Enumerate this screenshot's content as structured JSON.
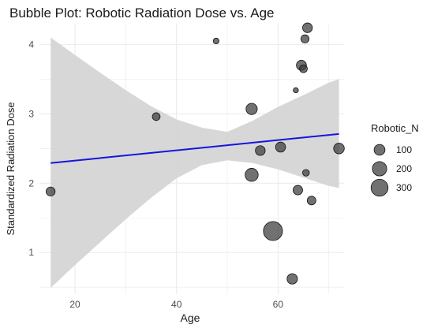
{
  "chart_data": {
    "type": "scatter",
    "subtype": "bubble",
    "title": "Bubble Plot: Robotic Radiation Dose vs. Age",
    "xlabel": "Age",
    "ylabel": "Standardized Radiation Dose",
    "xlim": [
      13,
      73
    ],
    "ylim": [
      0.4,
      4.3
    ],
    "x_ticks": [
      20,
      40,
      60
    ],
    "y_ticks": [
      1,
      2,
      3,
      4
    ],
    "x_tick_labels": [
      "20",
      "40",
      "60"
    ],
    "y_tick_labels": [
      "1",
      "2",
      "3",
      "4"
    ],
    "grid": true,
    "size_legend": {
      "title": "Robotic_N",
      "position": "right",
      "entries": [
        {
          "label": "100",
          "value": 100
        },
        {
          "label": "200",
          "value": 200
        },
        {
          "label": "300",
          "value": 300
        }
      ]
    },
    "points": [
      {
        "x": 15.2,
        "y": 1.88,
        "size": 60
      },
      {
        "x": 36.0,
        "y": 2.96,
        "size": 40
      },
      {
        "x": 47.8,
        "y": 4.05,
        "size": 15
      },
      {
        "x": 54.8,
        "y": 3.07,
        "size": 110
      },
      {
        "x": 54.8,
        "y": 2.12,
        "size": 160
      },
      {
        "x": 56.5,
        "y": 2.47,
        "size": 75
      },
      {
        "x": 59.0,
        "y": 1.31,
        "size": 390
      },
      {
        "x": 60.5,
        "y": 2.52,
        "size": 80
      },
      {
        "x": 62.8,
        "y": 0.62,
        "size": 90
      },
      {
        "x": 63.5,
        "y": 3.34,
        "size": 10
      },
      {
        "x": 63.9,
        "y": 1.9,
        "size": 70
      },
      {
        "x": 64.6,
        "y": 3.7,
        "size": 80
      },
      {
        "x": 65.0,
        "y": 3.65,
        "size": 40
      },
      {
        "x": 65.3,
        "y": 4.08,
        "size": 45
      },
      {
        "x": 65.5,
        "y": 2.15,
        "size": 25
      },
      {
        "x": 65.8,
        "y": 4.24,
        "size": 75
      },
      {
        "x": 66.6,
        "y": 1.75,
        "size": 55
      },
      {
        "x": 72.0,
        "y": 2.5,
        "size": 95
      }
    ],
    "trend_line": {
      "method": "linear",
      "x": [
        15.2,
        72.0
      ],
      "y": [
        2.29,
        2.71
      ],
      "color": "#1515dd"
    },
    "confidence_band": {
      "x": [
        15.2,
        20,
        25,
        30,
        35,
        40,
        45,
        50,
        55,
        60,
        65,
        70,
        72.0
      ],
      "lower": [
        0.49,
        0.82,
        1.15,
        1.48,
        1.79,
        2.07,
        2.26,
        2.33,
        2.29,
        2.2,
        2.08,
        1.96,
        1.93
      ],
      "upper": [
        4.1,
        3.85,
        3.59,
        3.34,
        3.11,
        2.92,
        2.8,
        2.74,
        2.9,
        3.1,
        3.27,
        3.45,
        3.5
      ],
      "color": "#d3d3d3"
    },
    "colors": {
      "point_fill": "#3a3a3a",
      "point_stroke": "#111111",
      "grid": "#ebebeb",
      "axis_text": "#4d4d4d",
      "title_text": "#1a1a1a"
    }
  }
}
